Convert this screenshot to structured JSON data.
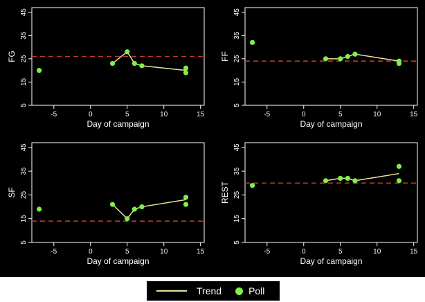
{
  "colors": {
    "background": "#000000",
    "axis": "#ffffff",
    "trend": "#e8e59a",
    "poll": "#7ef04a",
    "reference": "#c0392b"
  },
  "legend": {
    "trend_label": "Trend",
    "poll_label": "Poll"
  },
  "chart_data": [
    {
      "type": "line",
      "ylabel": "FG",
      "xlabel": "Day of campaign",
      "xlim": [
        -8,
        15.5
      ],
      "ylim": [
        5,
        47
      ],
      "xticks": [
        -5,
        0,
        5,
        10,
        15
      ],
      "yticks": [
        5,
        15,
        25,
        35,
        45
      ],
      "reference_line": 26,
      "trend": {
        "x": [
          3,
          5,
          6,
          7,
          13
        ],
        "y": [
          23,
          28,
          23,
          22,
          20
        ]
      },
      "polls": {
        "x": [
          -7,
          3,
          5,
          6,
          7,
          13,
          13
        ],
        "y": [
          20,
          23,
          28,
          23,
          22,
          21,
          19
        ]
      }
    },
    {
      "type": "line",
      "ylabel": "FF",
      "xlabel": "Day of campaign",
      "xlim": [
        -8,
        15.5
      ],
      "ylim": [
        5,
        47
      ],
      "xticks": [
        -5,
        0,
        5,
        10,
        15
      ],
      "yticks": [
        5,
        15,
        25,
        35,
        45
      ],
      "reference_line": 24,
      "trend": {
        "x": [
          3,
          5,
          6,
          7,
          13
        ],
        "y": [
          25,
          25,
          26,
          27,
          24
        ]
      },
      "polls": {
        "x": [
          -7,
          3,
          5,
          6,
          7,
          13,
          13
        ],
        "y": [
          32,
          25,
          25,
          26,
          27,
          23,
          24
        ]
      }
    },
    {
      "type": "line",
      "ylabel": "SF",
      "xlabel": "Day of campaign",
      "xlim": [
        -8,
        15.5
      ],
      "ylim": [
        5,
        47
      ],
      "xticks": [
        -5,
        0,
        5,
        10,
        15
      ],
      "yticks": [
        5,
        15,
        25,
        35,
        45
      ],
      "reference_line": 14,
      "trend": {
        "x": [
          3,
          5,
          6,
          7,
          13
        ],
        "y": [
          21,
          15,
          19,
          20,
          23
        ]
      },
      "polls": {
        "x": [
          -7,
          3,
          5,
          6,
          7,
          13,
          13
        ],
        "y": [
          19,
          21,
          15,
          19,
          20,
          24,
          21
        ]
      }
    },
    {
      "type": "line",
      "ylabel": "REST",
      "xlabel": "Day of campaign",
      "xlim": [
        -8,
        15.5
      ],
      "ylim": [
        5,
        47
      ],
      "xticks": [
        -5,
        0,
        5,
        10,
        15
      ],
      "yticks": [
        5,
        15,
        25,
        35,
        45
      ],
      "reference_line": 30,
      "trend": {
        "x": [
          3,
          5,
          6,
          7,
          13
        ],
        "y": [
          31,
          32,
          32,
          31,
          34
        ]
      },
      "polls": {
        "x": [
          -7,
          3,
          5,
          6,
          7,
          13,
          13
        ],
        "y": [
          29,
          31,
          32,
          32,
          31,
          37,
          31
        ]
      }
    }
  ]
}
